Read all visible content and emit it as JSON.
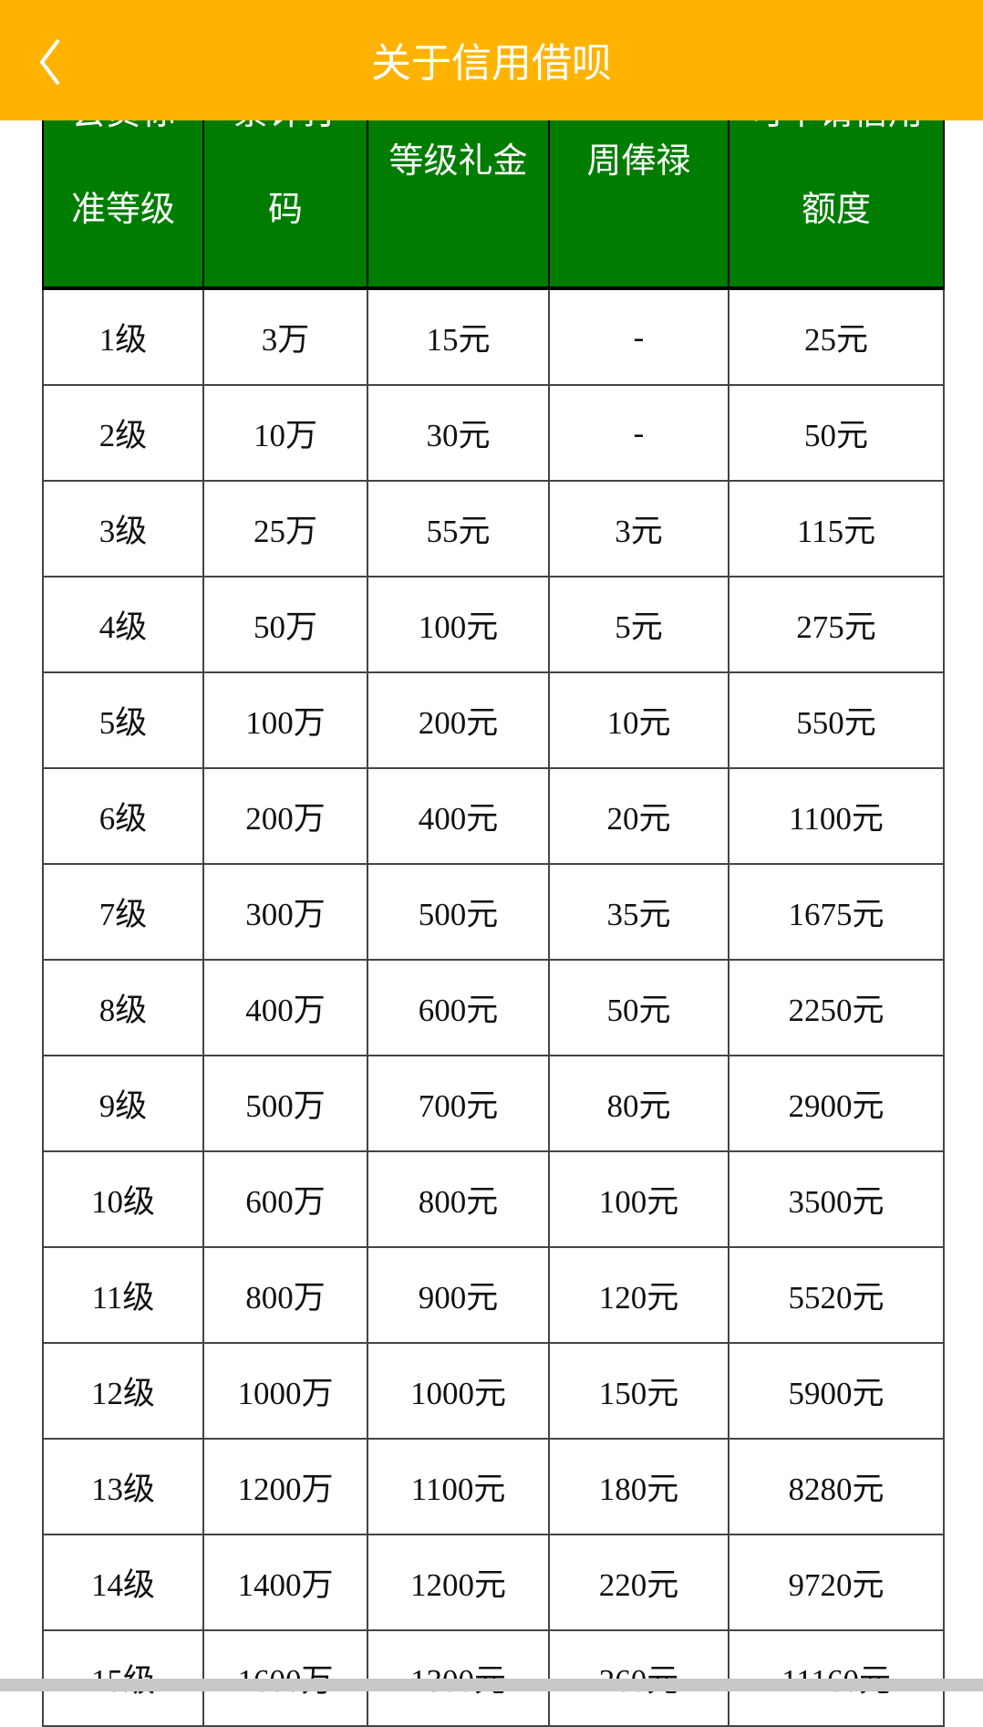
{
  "appbar": {
    "title": "关于信用借呗",
    "back_icon": "chevron-left-icon",
    "color": "#FFB300"
  },
  "table": {
    "header_color": "#007D00",
    "headers": [
      "会员标准等级",
      "累计打码",
      "等级礼金",
      "周俸禄",
      "可申请信用额度"
    ],
    "rows": [
      [
        "1级",
        "3万",
        "15元",
        "-",
        "25元"
      ],
      [
        "2级",
        "10万",
        "30元",
        "-",
        "50元"
      ],
      [
        "3级",
        "25万",
        "55元",
        "3元",
        "115元"
      ],
      [
        "4级",
        "50万",
        "100元",
        "5元",
        "275元"
      ],
      [
        "5级",
        "100万",
        "200元",
        "10元",
        "550元"
      ],
      [
        "6级",
        "200万",
        "400元",
        "20元",
        "1100元"
      ],
      [
        "7级",
        "300万",
        "500元",
        "35元",
        "1675元"
      ],
      [
        "8级",
        "400万",
        "600元",
        "50元",
        "2250元"
      ],
      [
        "9级",
        "500万",
        "700元",
        "80元",
        "2900元"
      ],
      [
        "10级",
        "600万",
        "800元",
        "100元",
        "3500元"
      ],
      [
        "11级",
        "800万",
        "900元",
        "120元",
        "5520元"
      ],
      [
        "12级",
        "1000万",
        "1000元",
        "150元",
        "5900元"
      ],
      [
        "13级",
        "1200万",
        "1100元",
        "180元",
        "8280元"
      ],
      [
        "14级",
        "1400万",
        "1200元",
        "220元",
        "9720元"
      ],
      [
        "15级",
        "1600万",
        "1300元",
        "260元",
        "11160元"
      ]
    ]
  }
}
